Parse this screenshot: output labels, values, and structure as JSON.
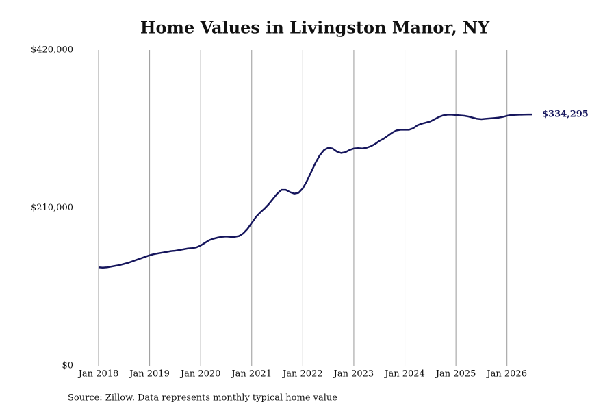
{
  "chart_data": {
    "type": "line",
    "title": "Home Values in Livingston Manor, NY",
    "caption": "Source: Zillow. Data represents monthly typical home value",
    "x": [
      "2018-01",
      "2018-02",
      "2018-03",
      "2018-04",
      "2018-05",
      "2018-06",
      "2018-07",
      "2018-08",
      "2018-09",
      "2018-10",
      "2018-11",
      "2018-12",
      "2019-01",
      "2019-02",
      "2019-03",
      "2019-04",
      "2019-05",
      "2019-06",
      "2019-07",
      "2019-08",
      "2019-09",
      "2019-10",
      "2019-11",
      "2019-12",
      "2020-01",
      "2020-02",
      "2020-03",
      "2020-04",
      "2020-05",
      "2020-06",
      "2020-07",
      "2020-08",
      "2020-09",
      "2020-10",
      "2020-11",
      "2020-12",
      "2021-01",
      "2021-02",
      "2021-03",
      "2021-04",
      "2021-05",
      "2021-06",
      "2021-07",
      "2021-08",
      "2021-09",
      "2021-10",
      "2021-11",
      "2021-12",
      "2022-01",
      "2022-02",
      "2022-03",
      "2022-04",
      "2022-05",
      "2022-06",
      "2022-07",
      "2022-08",
      "2022-09",
      "2022-10",
      "2022-11",
      "2022-12",
      "2023-01",
      "2023-02",
      "2023-03",
      "2023-04",
      "2023-05",
      "2023-06",
      "2023-07",
      "2023-08",
      "2023-09",
      "2023-10",
      "2023-11",
      "2023-12",
      "2024-01",
      "2024-02",
      "2024-03",
      "2024-04",
      "2024-05",
      "2024-06",
      "2024-07",
      "2024-08",
      "2024-09",
      "2024-10",
      "2024-11",
      "2024-12",
      "2025-01",
      "2025-02",
      "2025-03",
      "2025-04",
      "2025-05",
      "2025-06",
      "2025-07",
      "2025-08",
      "2025-09",
      "2025-10",
      "2025-11",
      "2025-12",
      "2026-01",
      "2026-02",
      "2026-03",
      "2026-04",
      "2026-05",
      "2026-06",
      "2026-07"
    ],
    "series": [
      {
        "color": "#15155c",
        "values": [
          131000,
          130500,
          131000,
          132000,
          133000,
          134000,
          135500,
          137000,
          139000,
          141000,
          143000,
          145000,
          147000,
          148500,
          149500,
          150500,
          151500,
          152500,
          153000,
          154000,
          155000,
          156000,
          156500,
          157500,
          160000,
          163500,
          167000,
          169000,
          170500,
          171500,
          172000,
          171500,
          171500,
          172500,
          176000,
          182000,
          190000,
          198000,
          204000,
          209000,
          215000,
          222000,
          229000,
          234000,
          234000,
          231000,
          229000,
          230000,
          236000,
          246000,
          258000,
          270000,
          280000,
          287000,
          290000,
          289000,
          285000,
          283000,
          284000,
          287000,
          289000,
          289500,
          289000,
          290000,
          292000,
          295000,
          299000,
          302000,
          306000,
          310000,
          313000,
          314000,
          314000,
          314000,
          316000,
          320000,
          322000,
          323500,
          325000,
          328000,
          331000,
          333000,
          334000,
          334000,
          333500,
          333000,
          332500,
          331500,
          330000,
          328500,
          328000,
          328500,
          329000,
          329500,
          330000,
          331000,
          332500,
          333500,
          333800,
          334000,
          334100,
          334200,
          334295
        ],
        "value_labels": [
          null,
          null,
          null,
          null,
          null,
          null,
          null,
          null,
          null,
          null,
          null,
          null,
          null,
          null,
          null,
          null,
          null,
          null,
          null,
          null,
          null,
          null,
          null,
          null,
          null,
          null,
          null,
          null,
          null,
          null,
          null,
          null,
          null,
          null,
          null,
          null,
          null,
          null,
          null,
          null,
          null,
          null,
          null,
          null,
          null,
          null,
          null,
          null,
          null,
          null,
          null,
          null,
          null,
          null,
          null,
          null,
          null,
          null,
          null,
          null,
          null,
          null,
          null,
          null,
          null,
          null,
          null,
          null,
          null,
          null,
          null,
          null,
          null,
          null,
          null,
          null,
          null,
          null,
          null,
          null,
          null,
          null,
          null,
          null,
          null,
          null,
          null,
          null,
          null,
          null,
          null,
          null,
          null,
          null,
          null,
          null,
          null,
          null,
          null,
          null,
          null,
          null,
          "$334,295"
        ]
      }
    ],
    "xlim": [
      "2018-01",
      "2026-07"
    ],
    "xticks": [
      {
        "value": "2018-01",
        "label": "Jan 2018"
      },
      {
        "value": "2019-01",
        "label": "Jan 2019"
      },
      {
        "value": "2020-01",
        "label": "Jan 2020"
      },
      {
        "value": "2021-01",
        "label": "Jan 2021"
      },
      {
        "value": "2022-01",
        "label": "Jan 2022"
      },
      {
        "value": "2023-01",
        "label": "Jan 2023"
      },
      {
        "value": "2024-01",
        "label": "Jan 2024"
      },
      {
        "value": "2025-01",
        "label": "Jan 2025"
      },
      {
        "value": "2026-01",
        "label": "Jan 2026"
      }
    ],
    "ylim": [
      0,
      420000
    ],
    "yticks": [
      {
        "value": 0,
        "label": "$0"
      },
      {
        "value": 210000,
        "label": "$210,000"
      },
      {
        "value": 420000,
        "label": "$420,000"
      }
    ],
    "grid": "x"
  }
}
